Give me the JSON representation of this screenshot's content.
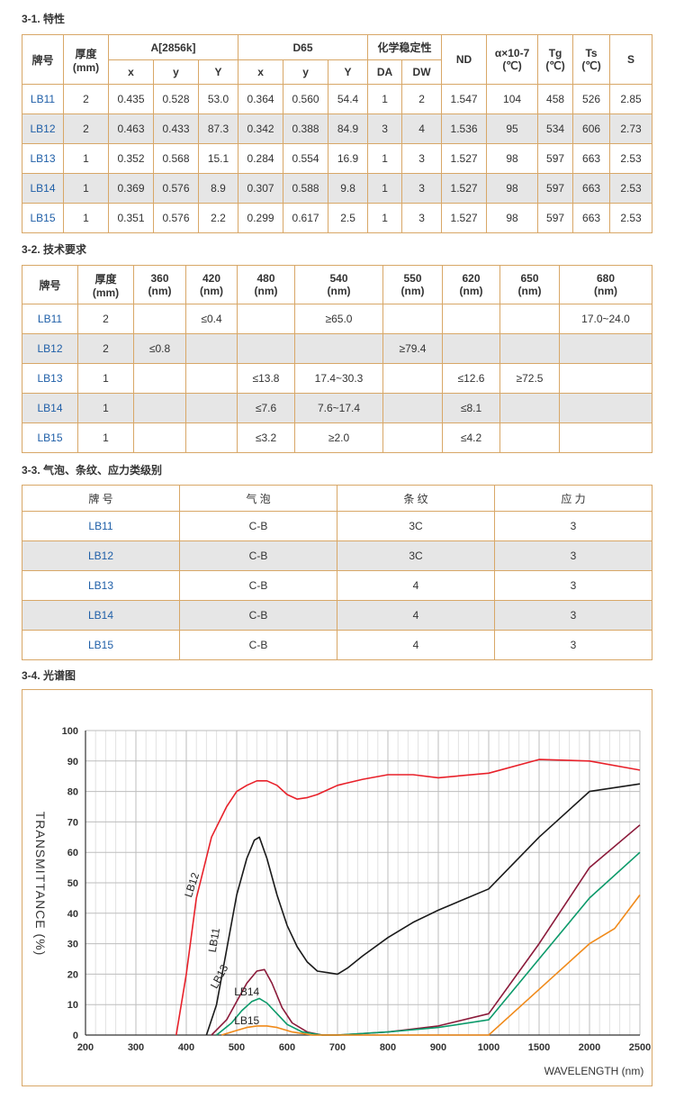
{
  "sections": {
    "s1": "3-1. 特性",
    "s2": "3-2. 技术要求",
    "s3": "3-3. 气泡、条纹、应力类级别",
    "s4": "3-4. 光谱图"
  },
  "table1": {
    "headers": {
      "brand": "牌号",
      "thickness": "厚度\n(mm)",
      "a2856k": "A[2856k]",
      "d65": "D65",
      "chem": "化学稳定性",
      "nd": "ND",
      "alpha": "α×10-7\n(℃)",
      "tg": "Tg\n(℃)",
      "ts": "Ts\n(℃)",
      "s": "S",
      "x": "x",
      "y": "y",
      "Y": "Y",
      "da": "DA",
      "dw": "DW"
    },
    "rows": [
      [
        "LB11",
        "2",
        "0.435",
        "0.528",
        "53.0",
        "0.364",
        "0.560",
        "54.4",
        "1",
        "2",
        "1.547",
        "104",
        "458",
        "526",
        "2.85"
      ],
      [
        "LB12",
        "2",
        "0.463",
        "0.433",
        "87.3",
        "0.342",
        "0.388",
        "84.9",
        "3",
        "4",
        "1.536",
        "95",
        "534",
        "606",
        "2.73"
      ],
      [
        "LB13",
        "1",
        "0.352",
        "0.568",
        "15.1",
        "0.284",
        "0.554",
        "16.9",
        "1",
        "3",
        "1.527",
        "98",
        "597",
        "663",
        "2.53"
      ],
      [
        "LB14",
        "1",
        "0.369",
        "0.576",
        "8.9",
        "0.307",
        "0.588",
        "9.8",
        "1",
        "3",
        "1.527",
        "98",
        "597",
        "663",
        "2.53"
      ],
      [
        "LB15",
        "1",
        "0.351",
        "0.576",
        "2.2",
        "0.299",
        "0.617",
        "2.5",
        "1",
        "3",
        "1.527",
        "98",
        "597",
        "663",
        "2.53"
      ]
    ]
  },
  "table2": {
    "headers": [
      "牌号",
      "厚度\n(mm)",
      "360\n(nm)",
      "420\n(nm)",
      "480\n(nm)",
      "540\n(nm)",
      "550\n(nm)",
      "620\n(nm)",
      "650\n(nm)",
      "680\n(nm)"
    ],
    "rows": [
      [
        "LB11",
        "2",
        "",
        "≤0.4",
        "",
        "≥65.0",
        "",
        "",
        "",
        "17.0~24.0"
      ],
      [
        "LB12",
        "2",
        "≤0.8",
        "",
        "",
        "",
        "≥79.4",
        "",
        "",
        ""
      ],
      [
        "LB13",
        "1",
        "",
        "",
        "≤13.8",
        "17.4~30.3",
        "",
        "≤12.6",
        "≥72.5",
        ""
      ],
      [
        "LB14",
        "1",
        "",
        "",
        "≤7.6",
        "7.6~17.4",
        "",
        "≤8.1",
        "",
        ""
      ],
      [
        "LB15",
        "1",
        "",
        "",
        "≤3.2",
        "≥2.0",
        "",
        "≤4.2",
        "",
        ""
      ]
    ]
  },
  "table3": {
    "headers": [
      "牌 号",
      "气 泡",
      "条 纹",
      "应 力"
    ],
    "rows": [
      [
        "LB11",
        "C-B",
        "3C",
        "3"
      ],
      [
        "LB12",
        "C-B",
        "3C",
        "3"
      ],
      [
        "LB13",
        "C-B",
        "4",
        "3"
      ],
      [
        "LB14",
        "C-B",
        "4",
        "3"
      ],
      [
        "LB15",
        "C-B",
        "4",
        "3"
      ]
    ]
  },
  "chart_data": {
    "type": "line",
    "xlabel": "WAVELENGTH (nm)",
    "ylabel": "TRANSMITTANCE  (%)",
    "ylim": [
      0,
      100
    ],
    "grid": true,
    "x_ticks": [
      "200",
      "300",
      "400",
      "500",
      "600",
      "700",
      "800",
      "900",
      "1000",
      "1500",
      "2000",
      "2500"
    ],
    "y_ticks": [
      "0",
      "10",
      "20",
      "30",
      "40",
      "50",
      "60",
      "70",
      "80",
      "90",
      "100"
    ],
    "series": [
      {
        "name": "LB12",
        "color": "#e8212a",
        "x": [
          380,
          400,
          420,
          450,
          480,
          500,
          520,
          540,
          560,
          580,
          600,
          620,
          640,
          660,
          680,
          700,
          750,
          800,
          850,
          900,
          1000,
          1500,
          2000,
          2500
        ],
        "y": [
          0,
          20,
          45,
          65,
          75,
          80,
          82,
          83.5,
          83.5,
          82,
          79,
          77.5,
          78,
          79,
          80.5,
          82,
          84,
          85.5,
          85.5,
          84.5,
          86,
          90.5,
          90,
          87
        ]
      },
      {
        "name": "LB11",
        "color": "#1a1a1a",
        "x": [
          440,
          460,
          480,
          500,
          520,
          535,
          545,
          560,
          580,
          600,
          620,
          640,
          660,
          680,
          700,
          720,
          750,
          800,
          850,
          900,
          1000,
          1500,
          2000,
          2500
        ],
        "y": [
          0,
          10,
          28,
          46,
          58,
          64,
          65,
          58,
          46,
          36,
          29,
          24,
          21,
          20.5,
          20,
          22,
          26,
          32,
          37,
          41,
          48,
          65,
          80,
          82.5
        ]
      },
      {
        "name": "LB13",
        "color": "#8b1a3a",
        "x": [
          450,
          480,
          500,
          520,
          540,
          555,
          570,
          590,
          610,
          640,
          670,
          700,
          800,
          900,
          1000,
          1500,
          2000,
          2500
        ],
        "y": [
          0,
          5,
          11,
          17,
          21,
          21.5,
          17,
          9,
          4,
          1,
          0,
          0,
          1,
          3,
          7,
          30,
          55,
          69
        ]
      },
      {
        "name": "LB14",
        "color": "#0b9a6a",
        "x": [
          460,
          490,
          510,
          530,
          545,
          560,
          580,
          600,
          630,
          670,
          700,
          800,
          900,
          1000,
          1500,
          2000,
          2500
        ],
        "y": [
          0,
          4,
          8,
          11,
          12,
          10.5,
          7,
          3.5,
          1,
          0,
          0,
          1,
          2.5,
          5,
          25,
          45,
          60
        ]
      },
      {
        "name": "LB15",
        "color": "#f08a1a",
        "x": [
          470,
          500,
          520,
          540,
          560,
          580,
          610,
          650,
          700,
          900,
          1000,
          1500,
          2000,
          2250,
          2500
        ],
        "y": [
          0,
          1.5,
          2.5,
          3,
          3,
          2.5,
          1,
          0,
          0,
          0,
          0,
          15,
          30,
          35,
          46
        ]
      }
    ]
  }
}
